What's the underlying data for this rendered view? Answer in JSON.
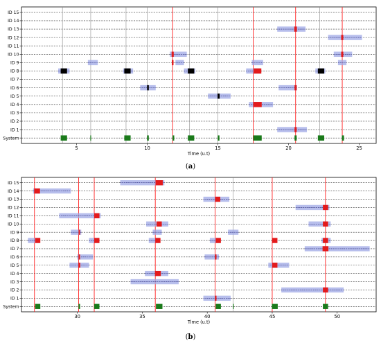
{
  "chart_data": [
    {
      "type": "scatter",
      "caption_letter": "a",
      "xlabel": "Time (u.t)",
      "xlim": [
        1.1,
        26.2
      ],
      "xticks": [
        5,
        10,
        15,
        20,
        25
      ],
      "rows": [
        "System",
        "ID 1",
        "ID 2",
        "ID 3",
        "ID 4",
        "ID 5",
        "ID 6",
        "ID 7",
        "ID 8",
        "ID 9",
        "ID 10",
        "ID 11",
        "ID 12",
        "ID 13",
        "ID 14",
        "ID 15"
      ],
      "grid": true,
      "colors": {
        "red": "#e31a1c",
        "black": "#000000",
        "green": "#1a7a1a",
        "blue_band": "#9fa8e6",
        "dash": "#333333",
        "vline_red": "#ff2020",
        "vline_gray": "#888888"
      },
      "vlines": [
        {
          "x": 4.0,
          "color": "gray"
        },
        {
          "x": 6.0,
          "color": "gray"
        },
        {
          "x": 8.5,
          "color": "gray"
        },
        {
          "x": 10.0,
          "color": "gray"
        },
        {
          "x": 11.8,
          "color": "red"
        },
        {
          "x": 13.0,
          "color": "gray"
        },
        {
          "x": 15.0,
          "color": "gray"
        },
        {
          "x": 17.5,
          "color": "red"
        },
        {
          "x": 20.5,
          "color": "red"
        },
        {
          "x": 22.2,
          "color": "gray"
        },
        {
          "x": 23.8,
          "color": "red"
        }
      ],
      "bands": [
        {
          "row": "ID 13",
          "x0": 19.2,
          "x1": 21.2
        },
        {
          "row": "ID 12",
          "x0": 22.8,
          "x1": 25.2
        },
        {
          "row": "ID 10",
          "x0": 11.6,
          "x1": 12.8
        },
        {
          "row": "ID 10",
          "x0": 23.2,
          "x1": 24.5
        },
        {
          "row": "ID 9",
          "x0": 5.8,
          "x1": 6.5
        },
        {
          "row": "ID 9",
          "x0": 12.0,
          "x1": 12.6
        },
        {
          "row": "ID 9",
          "x0": 17.4,
          "x1": 18.2
        },
        {
          "row": "ID 9",
          "x0": 23.5,
          "x1": 24.1
        },
        {
          "row": "ID 8",
          "x0": 3.7,
          "x1": 4.5
        },
        {
          "row": "ID 8",
          "x0": 8.3,
          "x1": 9.0
        },
        {
          "row": "ID 8",
          "x0": 12.6,
          "x1": 13.4
        },
        {
          "row": "ID 8",
          "x0": 17.0,
          "x1": 18.0
        },
        {
          "row": "ID 8",
          "x0": 21.9,
          "x1": 22.6
        },
        {
          "row": "ID 6",
          "x0": 9.5,
          "x1": 10.6
        },
        {
          "row": "ID 6",
          "x0": 19.3,
          "x1": 20.6
        },
        {
          "row": "ID 5",
          "x0": 14.3,
          "x1": 15.9
        },
        {
          "row": "ID 4",
          "x0": 17.2,
          "x1": 18.9
        },
        {
          "row": "ID 1",
          "x0": 19.2,
          "x1": 21.3
        }
      ],
      "markers": [
        {
          "row": "ID 13",
          "x": 20.5,
          "color": "red",
          "w": 0.18
        },
        {
          "row": "ID 12",
          "x": 23.8,
          "color": "red",
          "w": 0.15
        },
        {
          "row": "ID 10",
          "x": 11.8,
          "color": "red",
          "w": 0.15
        },
        {
          "row": "ID 10",
          "x": 23.8,
          "color": "red",
          "w": 0.15
        },
        {
          "row": "ID 9",
          "x": 11.8,
          "color": "red",
          "w": 0.12
        },
        {
          "row": "ID 8",
          "x": 4.1,
          "color": "black",
          "w": 0.45
        },
        {
          "row": "ID 8",
          "x": 8.6,
          "color": "black",
          "w": 0.45
        },
        {
          "row": "ID 8",
          "x": 13.1,
          "color": "black",
          "w": 0.45
        },
        {
          "row": "ID 8",
          "x": 17.8,
          "color": "red",
          "w": 0.55
        },
        {
          "row": "ID 8",
          "x": 22.3,
          "color": "black",
          "w": 0.45
        },
        {
          "row": "ID 6",
          "x": 10.05,
          "color": "black",
          "w": 0.12
        },
        {
          "row": "ID 6",
          "x": 20.5,
          "color": "red",
          "w": 0.15
        },
        {
          "row": "ID 5",
          "x": 15.05,
          "color": "black",
          "w": 0.15
        },
        {
          "row": "ID 4",
          "x": 17.8,
          "color": "red",
          "w": 0.6
        },
        {
          "row": "ID 1",
          "x": 20.5,
          "color": "red",
          "w": 0.15
        },
        {
          "row": "System",
          "x": 4.1,
          "color": "green",
          "w": 0.45
        },
        {
          "row": "System",
          "x": 6.0,
          "color": "green",
          "w": 0.06
        },
        {
          "row": "System",
          "x": 8.6,
          "color": "green",
          "w": 0.45
        },
        {
          "row": "System",
          "x": 10.05,
          "color": "green",
          "w": 0.12
        },
        {
          "row": "System",
          "x": 11.85,
          "color": "green",
          "w": 0.12
        },
        {
          "row": "System",
          "x": 13.1,
          "color": "green",
          "w": 0.45
        },
        {
          "row": "System",
          "x": 15.05,
          "color": "green",
          "w": 0.12
        },
        {
          "row": "System",
          "x": 17.8,
          "color": "green",
          "w": 0.6
        },
        {
          "row": "System",
          "x": 20.5,
          "color": "green",
          "w": 0.15
        },
        {
          "row": "System",
          "x": 22.3,
          "color": "green",
          "w": 0.45
        },
        {
          "row": "System",
          "x": 23.85,
          "color": "green",
          "w": 0.15
        }
      ]
    },
    {
      "type": "scatter",
      "caption_letter": "b",
      "xlabel": "Time (u.t)",
      "xlim": [
        25.7,
        53.0
      ],
      "xticks": [
        30,
        35,
        40,
        45,
        50
      ],
      "rows": [
        "System",
        "ID 1",
        "ID 2",
        "ID 3",
        "ID 4",
        "ID 5",
        "ID 6",
        "ID 7",
        "ID 8",
        "ID 9",
        "ID 10",
        "ID 11",
        "ID 12",
        "ID 13",
        "ID 14",
        "ID 15"
      ],
      "grid": true,
      "colors": {
        "red": "#e31a1c",
        "black": "#000000",
        "green": "#1a7a1a",
        "blue_band": "#9fa8e6",
        "dash": "#333333",
        "vline_red": "#ff2020",
        "vline_gray": "#888888"
      },
      "vlines": [
        {
          "x": 26.7,
          "color": "red"
        },
        {
          "x": 30.1,
          "color": "red"
        },
        {
          "x": 31.3,
          "color": "red"
        },
        {
          "x": 36.0,
          "color": "red"
        },
        {
          "x": 40.6,
          "color": "red"
        },
        {
          "x": 42.0,
          "color": "gray"
        },
        {
          "x": 45.0,
          "color": "red"
        },
        {
          "x": 49.1,
          "color": "red"
        }
      ],
      "bands": [
        {
          "row": "ID 15",
          "x0": 33.3,
          "x1": 36.7
        },
        {
          "row": "ID 14",
          "x0": 26.6,
          "x1": 29.5
        },
        {
          "row": "ID 13",
          "x0": 39.7,
          "x1": 41.7
        },
        {
          "row": "ID 12",
          "x0": 46.8,
          "x1": 49.4
        },
        {
          "row": "ID 11",
          "x0": 28.6,
          "x1": 31.8
        },
        {
          "row": "ID 10",
          "x0": 35.3,
          "x1": 37.0
        },
        {
          "row": "ID 10",
          "x0": 47.8,
          "x1": 49.5
        },
        {
          "row": "ID 9",
          "x0": 29.5,
          "x1": 30.3
        },
        {
          "row": "ID 9",
          "x0": 35.8,
          "x1": 36.5
        },
        {
          "row": "ID 9",
          "x0": 41.6,
          "x1": 42.4
        },
        {
          "row": "ID 8",
          "x0": 26.2,
          "x1": 27.0
        },
        {
          "row": "ID 8",
          "x0": 30.9,
          "x1": 31.7
        },
        {
          "row": "ID 8",
          "x0": 35.5,
          "x1": 36.3
        },
        {
          "row": "ID 8",
          "x0": 40.2,
          "x1": 41.0
        },
        {
          "row": "ID 8",
          "x0": 48.8,
          "x1": 49.5
        },
        {
          "row": "ID 7",
          "x0": 47.5,
          "x1": 52.5
        },
        {
          "row": "ID 6",
          "x0": 30.0,
          "x1": 31.2
        },
        {
          "row": "ID 6",
          "x0": 39.8,
          "x1": 40.9
        },
        {
          "row": "ID 5",
          "x0": 29.4,
          "x1": 30.9
        },
        {
          "row": "ID 5",
          "x0": 44.7,
          "x1": 46.3
        },
        {
          "row": "ID 4",
          "x0": 35.2,
          "x1": 37.0
        },
        {
          "row": "ID 3",
          "x0": 34.1,
          "x1": 37.8
        },
        {
          "row": "ID 2",
          "x0": 45.7,
          "x1": 50.5
        },
        {
          "row": "ID 1",
          "x0": 39.7,
          "x1": 41.8
        }
      ],
      "markers": [
        {
          "row": "ID 15",
          "x": 36.3,
          "color": "red",
          "w": 0.55
        },
        {
          "row": "ID 14",
          "x": 26.9,
          "color": "red",
          "w": 0.45
        },
        {
          "row": "ID 13",
          "x": 40.8,
          "color": "red",
          "w": 0.4
        },
        {
          "row": "ID 12",
          "x": 49.1,
          "color": "red",
          "w": 0.4
        },
        {
          "row": "ID 11",
          "x": 31.5,
          "color": "red",
          "w": 0.4
        },
        {
          "row": "ID 10",
          "x": 36.3,
          "color": "red",
          "w": 0.4
        },
        {
          "row": "ID 10",
          "x": 49.1,
          "color": "red",
          "w": 0.4
        },
        {
          "row": "ID 9",
          "x": 30.15,
          "color": "red",
          "w": 0.1
        },
        {
          "row": "ID 8",
          "x": 26.95,
          "color": "red",
          "w": 0.4
        },
        {
          "row": "ID 8",
          "x": 31.5,
          "color": "red",
          "w": 0.4
        },
        {
          "row": "ID 8",
          "x": 36.2,
          "color": "red",
          "w": 0.4
        },
        {
          "row": "ID 8",
          "x": 40.85,
          "color": "red",
          "w": 0.4
        },
        {
          "row": "ID 8",
          "x": 45.2,
          "color": "red",
          "w": 0.4
        },
        {
          "row": "ID 8",
          "x": 49.1,
          "color": "red",
          "w": 0.4
        },
        {
          "row": "ID 7",
          "x": 49.1,
          "color": "red",
          "w": 0.45
        },
        {
          "row": "ID 6",
          "x": 30.15,
          "color": "red",
          "w": 0.12
        },
        {
          "row": "ID 6",
          "x": 40.65,
          "color": "red",
          "w": 0.12
        },
        {
          "row": "ID 5",
          "x": 30.15,
          "color": "red",
          "w": 0.15
        },
        {
          "row": "ID 5",
          "x": 45.2,
          "color": "red",
          "w": 0.4
        },
        {
          "row": "ID 4",
          "x": 36.2,
          "color": "red",
          "w": 0.45
        },
        {
          "row": "ID 2",
          "x": 49.1,
          "color": "red",
          "w": 0.4
        },
        {
          "row": "ID 1",
          "x": 40.65,
          "color": "red",
          "w": 0.12
        },
        {
          "row": "System",
          "x": 26.95,
          "color": "green",
          "w": 0.4
        },
        {
          "row": "System",
          "x": 30.15,
          "color": "green",
          "w": 0.12
        },
        {
          "row": "System",
          "x": 31.5,
          "color": "green",
          "w": 0.4
        },
        {
          "row": "System",
          "x": 36.3,
          "color": "green",
          "w": 0.5
        },
        {
          "row": "System",
          "x": 40.85,
          "color": "green",
          "w": 0.4
        },
        {
          "row": "System",
          "x": 42.0,
          "color": "green",
          "w": 0.05
        },
        {
          "row": "System",
          "x": 45.2,
          "color": "green",
          "w": 0.45
        },
        {
          "row": "System",
          "x": 49.1,
          "color": "green",
          "w": 0.4
        }
      ]
    }
  ]
}
